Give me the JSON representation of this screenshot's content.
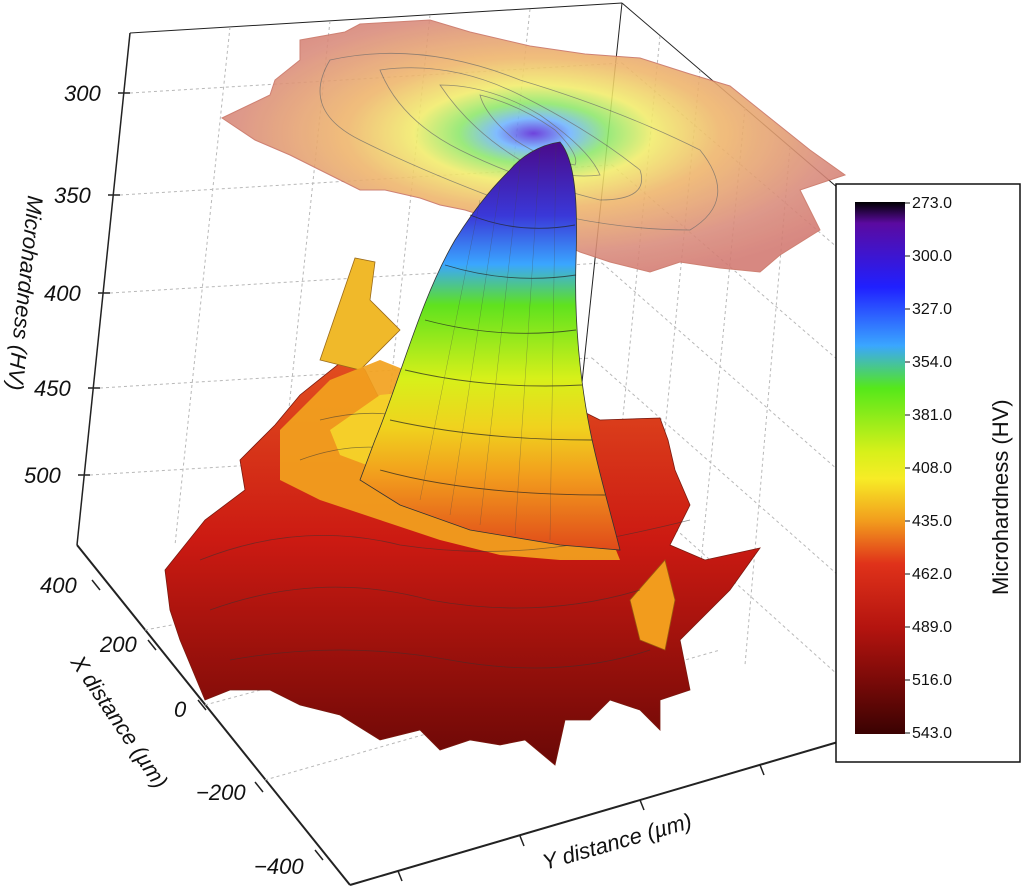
{
  "chart_data": {
    "type": "surface3d",
    "title": "",
    "zlabel": "Microhardness (HV)",
    "xlabel": "X distance (µm)",
    "ylabel": "Y distance (µm)",
    "zticks": [
      "300",
      "350",
      "400",
      "450",
      "500"
    ],
    "xticks": [
      "400",
      "200",
      "0",
      "−200",
      "−400"
    ],
    "zlim": [
      273,
      543
    ],
    "xlim": [
      -400,
      400
    ],
    "grid": true,
    "projected_contour_on_top": true,
    "colorbar": {
      "title": "Microhardness (HV)",
      "ticks": [
        "273.0",
        "300.0",
        "327.0",
        "354.0",
        "381.0",
        "408.0",
        "435.0",
        "462.0",
        "489.0",
        "516.0",
        "543.0"
      ],
      "colors": [
        "#000000",
        "#5b0aa0",
        "#1a1aff",
        "#3aa6ff",
        "#55e81a",
        "#d7f01a",
        "#f7ec26",
        "#f29c1d",
        "#e0321a",
        "#b4140f",
        "#7a0a08",
        "#3a0202"
      ],
      "placement": "right"
    },
    "peak": {
      "x": 0,
      "y": 0,
      "z": 290
    }
  }
}
